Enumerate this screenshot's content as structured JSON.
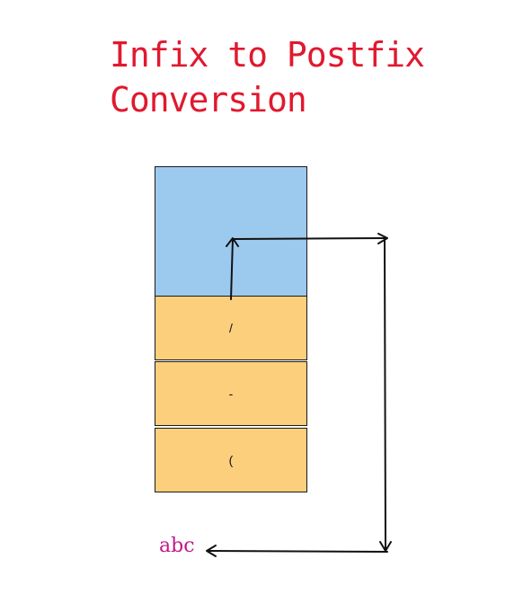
{
  "title": "Infix to Postfix\nConversion",
  "stack": {
    "items": [
      "/",
      "-",
      "("
    ]
  },
  "output": "abc",
  "colors": {
    "title": "#e0192f",
    "stack_empty": "#9ccaef",
    "stack_item": "#fbcf7c",
    "output": "#c2188b"
  }
}
